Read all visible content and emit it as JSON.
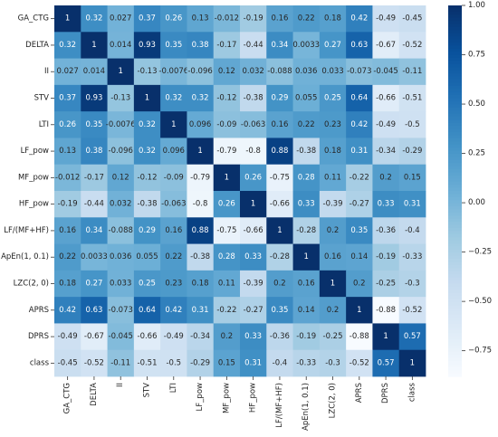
{
  "chart_data": {
    "type": "heatmap",
    "title": "",
    "xlabel": "",
    "ylabel": "",
    "colormap": "Blues",
    "colormap_stops": [
      "#f7fbff",
      "#deebf7",
      "#c6dbef",
      "#9ecae1",
      "#6baed6",
      "#4292c6",
      "#2171b5",
      "#08519c",
      "#08306b"
    ],
    "vmin": -0.88,
    "vmax": 1.0,
    "labels": [
      "GA_CTG",
      "DELTA",
      "II",
      "STV",
      "LTI",
      "LF_pow",
      "MF_pow",
      "HF_pow",
      "LF/(MF+HF)",
      "ApEn(1, 0.1)",
      "LZC(2, 0)",
      "APRS",
      "DPRS",
      "class"
    ],
    "values": [
      [
        1,
        0.32,
        0.027,
        0.37,
        0.26,
        0.13,
        -0.012,
        -0.19,
        0.16,
        0.22,
        0.18,
        0.42,
        -0.49,
        -0.45
      ],
      [
        0.32,
        1,
        0.014,
        0.93,
        0.35,
        0.38,
        -0.17,
        -0.44,
        0.34,
        0.0033,
        0.27,
        0.63,
        -0.67,
        -0.52
      ],
      [
        0.027,
        0.014,
        1,
        -0.13,
        -0.0076,
        -0.096,
        0.12,
        0.032,
        -0.088,
        0.036,
        0.033,
        -0.073,
        -0.045,
        -0.11
      ],
      [
        0.37,
        0.93,
        -0.13,
        1,
        0.32,
        0.32,
        -0.12,
        -0.38,
        0.29,
        0.055,
        0.25,
        0.64,
        -0.66,
        -0.51
      ],
      [
        0.26,
        0.35,
        -0.0076,
        0.32,
        1,
        0.096,
        -0.09,
        -0.063,
        0.16,
        0.22,
        0.23,
        0.42,
        -0.49,
        -0.5
      ],
      [
        0.13,
        0.38,
        -0.096,
        0.32,
        0.096,
        1,
        -0.79,
        -0.8,
        0.88,
        -0.38,
        0.18,
        0.31,
        -0.34,
        -0.29
      ],
      [
        -0.012,
        -0.17,
        0.12,
        -0.12,
        -0.09,
        -0.79,
        1,
        0.26,
        -0.75,
        0.28,
        0.11,
        -0.22,
        0.2,
        0.15
      ],
      [
        -0.19,
        -0.44,
        0.032,
        -0.38,
        -0.063,
        -0.8,
        0.26,
        1,
        -0.66,
        0.33,
        -0.39,
        -0.27,
        0.33,
        0.31
      ],
      [
        0.16,
        0.34,
        -0.088,
        0.29,
        0.16,
        0.88,
        -0.75,
        -0.66,
        1,
        -0.28,
        0.2,
        0.35,
        -0.36,
        -0.4
      ],
      [
        0.22,
        0.0033,
        0.036,
        0.055,
        0.22,
        -0.38,
        0.28,
        0.33,
        -0.28,
        1,
        0.16,
        0.14,
        -0.19,
        -0.33
      ],
      [
        0.18,
        0.27,
        0.033,
        0.25,
        0.23,
        0.18,
        0.11,
        -0.39,
        0.2,
        0.16,
        1,
        0.2,
        -0.25,
        -0.3
      ],
      [
        0.42,
        0.63,
        -0.073,
        0.64,
        0.42,
        0.31,
        -0.22,
        -0.27,
        0.35,
        0.14,
        0.2,
        1,
        -0.88,
        -0.52
      ],
      [
        -0.49,
        -0.67,
        -0.045,
        -0.66,
        -0.49,
        -0.34,
        0.2,
        0.33,
        -0.36,
        -0.19,
        -0.25,
        -0.88,
        1,
        0.57
      ],
      [
        -0.45,
        -0.52,
        -0.11,
        -0.51,
        -0.5,
        -0.29,
        0.15,
        0.31,
        -0.4,
        -0.33,
        -0.3,
        -0.52,
        0.57,
        1
      ]
    ],
    "colorbar": {
      "ticks": [
        1.0,
        0.75,
        0.5,
        0.25,
        0.0,
        -0.25,
        -0.5,
        -0.75
      ],
      "tick_labels": [
        "1.00",
        "0.75",
        "0.50",
        "0.25",
        "0.00",
        "−0.25",
        "−0.50",
        "−0.75"
      ]
    },
    "text_color_dark": "#262626",
    "text_color_light": "#ffffff"
  }
}
